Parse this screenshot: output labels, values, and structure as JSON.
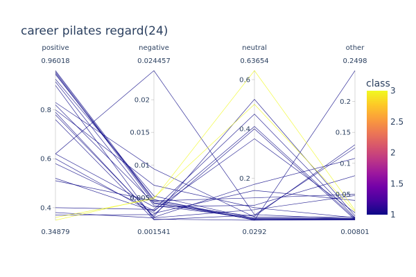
{
  "chart_data": {
    "type": "parallel_coordinates",
    "title": "career pilates regard(24)",
    "dimensions": [
      {
        "label": "positive",
        "range": [
          0.34879,
          0.96018
        ],
        "max_label": "0.96018",
        "min_label": "0.34879",
        "tickvals": [
          0.4,
          0.6,
          0.8
        ],
        "ticktext": [
          "0.4",
          "0.6",
          "0.8"
        ]
      },
      {
        "label": "negative",
        "range": [
          0.001541,
          0.024457
        ],
        "max_label": "0.024457",
        "min_label": "0.001541",
        "tickvals": [
          0.005,
          0.01,
          0.015,
          0.02
        ],
        "ticktext": [
          "0.005",
          "0.01",
          "0.015",
          "0.02"
        ]
      },
      {
        "label": "neutral",
        "range": [
          0.0292,
          0.63654
        ],
        "max_label": "0.63654",
        "min_label": "0.0292",
        "tickvals": [
          0.2,
          0.4,
          0.6
        ],
        "ticktext": [
          "0.2",
          "0.4",
          "0.6"
        ]
      },
      {
        "label": "other",
        "range": [
          0.00801,
          0.2498
        ],
        "max_label": "0.2498",
        "min_label": "0.00801",
        "tickvals": [
          0.05,
          0.1,
          0.15,
          0.2
        ],
        "ticktext": [
          "0.05",
          "0.1",
          "0.15",
          "0.2"
        ]
      }
    ],
    "lines": [
      {
        "values": [
          0.96018,
          0.0047,
          0.0292,
          0.0085
        ],
        "class": 1
      },
      {
        "values": [
          0.955,
          0.00445,
          0.0305,
          0.009
        ],
        "class": 1
      },
      {
        "values": [
          0.95,
          0.0042,
          0.032,
          0.0095
        ],
        "class": 1
      },
      {
        "values": [
          0.945,
          0.0047,
          0.034,
          0.01
        ],
        "class": 1
      },
      {
        "values": [
          0.925,
          0.00525,
          0.036,
          0.0105
        ],
        "class": 1
      },
      {
        "values": [
          0.915,
          0.0038,
          0.038,
          0.011
        ],
        "class": 1
      },
      {
        "values": [
          0.9,
          0.0017,
          0.0292,
          0.2498
        ],
        "class": 1
      },
      {
        "values": [
          0.83,
          0.0094,
          0.042,
          0.013
        ],
        "class": 1
      },
      {
        "values": [
          0.82,
          0.0041,
          0.045,
          0.13
        ],
        "class": 1
      },
      {
        "values": [
          0.8,
          0.0069,
          0.08,
          0.012
        ],
        "class": 1
      },
      {
        "values": [
          0.78,
          0.0021,
          0.52,
          0.015
        ],
        "class": 1
      },
      {
        "values": [
          0.76,
          0.0016,
          0.05,
          0.125
        ],
        "class": 1
      },
      {
        "values": [
          0.62,
          0.024457,
          0.052,
          0.01
        ],
        "class": 1
      },
      {
        "values": [
          0.62,
          0.0036,
          0.09,
          0.08
        ],
        "class": 1
      },
      {
        "values": [
          0.6,
          0.0026,
          0.15,
          0.04
        ],
        "class": 1
      },
      {
        "values": [
          0.58,
          0.003,
          0.36,
          0.02
        ],
        "class": 1
      },
      {
        "values": [
          0.52,
          0.0029,
          0.41,
          0.011
        ],
        "class": 1
      },
      {
        "values": [
          0.51,
          0.0045,
          0.12,
          0.05
        ],
        "class": 1
      },
      {
        "values": [
          0.79,
          0.002,
          0.175,
          0.108
        ],
        "class": 1
      },
      {
        "values": [
          0.4,
          0.0032,
          0.46,
          0.012
        ],
        "class": 1
      },
      {
        "values": [
          0.38,
          0.0019,
          0.072,
          0.048
        ],
        "class": 1
      },
      {
        "values": [
          0.37,
          0.0024,
          0.4,
          0.009
        ],
        "class": 1
      },
      {
        "values": [
          0.36,
          0.0048,
          0.63654,
          0.024
        ],
        "class": 3
      },
      {
        "values": [
          0.34879,
          0.005,
          0.5,
          0.022
        ],
        "class": 3
      }
    ],
    "colorscale": {
      "title": "class",
      "range": [
        1,
        3
      ],
      "tickvals": [
        1,
        1.5,
        2,
        2.5,
        3
      ],
      "ticktext": [
        "1",
        "1.5",
        "2",
        "2.5",
        "3"
      ]
    }
  }
}
